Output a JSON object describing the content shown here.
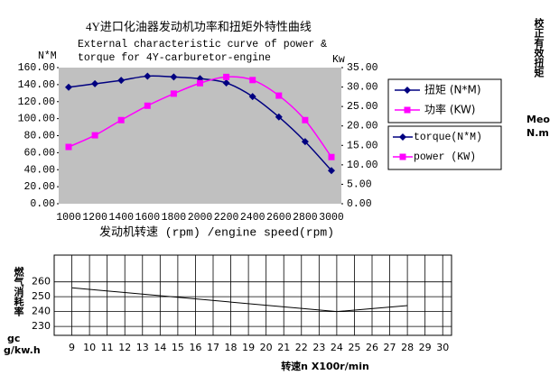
{
  "chart_data": [
    {
      "type": "line",
      "title": "4Y进口化油器发动机功率和扭矩外特性曲线",
      "subtitle": [
        "External characteristic curve of power &",
        "torque for 4Y-carburetor-engine"
      ],
      "ylabel": "N*M",
      "y2label": "Kw",
      "xlabel": "发动机转速 (rpm) /engine speed(rpm)",
      "categories": [
        "1000",
        "1200",
        "1400",
        "1600",
        "1800",
        "2000",
        "2200",
        "2400",
        "2600",
        "2800",
        "3000"
      ],
      "series": [
        {
          "name": "扭矩 (N*M)",
          "color": "#000080",
          "marker": "diamond",
          "values": [
            137,
            141,
            145,
            150,
            149,
            147,
            142,
            126,
            102,
            73,
            39
          ]
        },
        {
          "name": "功率 (KW)",
          "color": "#ff00ff",
          "marker": "square",
          "axis": "y2",
          "values": [
            14.6,
            17.6,
            21.5,
            25.2,
            28.3,
            31.0,
            32.6,
            31.8,
            27.8,
            21.5,
            12.0
          ]
        }
      ],
      "legend_en": [
        "torque(N*M)",
        "power (KW)"
      ],
      "ylim": [
        0,
        160
      ],
      "yticks": [
        {
          "value": 0,
          "label": "0.00"
        },
        {
          "value": 20,
          "label": "20.00"
        },
        {
          "value": 40,
          "label": "40.00"
        },
        {
          "value": 60,
          "label": "60.00"
        },
        {
          "value": 80,
          "label": "80.00"
        },
        {
          "value": 100,
          "label": "100.00"
        },
        {
          "value": 120,
          "label": "120.00"
        },
        {
          "value": 140,
          "label": "140.00"
        },
        {
          "value": 160,
          "label": "160.00"
        }
      ],
      "y2lim": [
        0,
        35
      ],
      "y2ticks": [
        {
          "value": 0,
          "label": "0.00"
        },
        {
          "value": 5,
          "label": "5.00"
        },
        {
          "value": 10,
          "label": "10.00"
        },
        {
          "value": 15,
          "label": "15.00"
        },
        {
          "value": 20,
          "label": "20.00"
        },
        {
          "value": 25,
          "label": "25.00"
        },
        {
          "value": 30,
          "label": "30.00"
        },
        {
          "value": 35,
          "label": "35.00"
        }
      ],
      "side_label": "校正有效扭矩",
      "side_unit": [
        "Meo",
        "N.m"
      ]
    },
    {
      "type": "line",
      "ylabel": "燃气消耗率",
      "yunit": [
        "gc",
        "g/kw.h"
      ],
      "xlabel": "转速n X100r/min",
      "x": [
        9,
        24,
        28
      ],
      "series": [
        {
          "color": "#000000",
          "values": [
            256,
            240,
            244
          ]
        }
      ],
      "xlim": [
        8,
        30.5
      ],
      "xticks": [
        9,
        10,
        11,
        12,
        13,
        14,
        15,
        16,
        17,
        18,
        19,
        20,
        21,
        22,
        23,
        24,
        25,
        26,
        27,
        28,
        29,
        30
      ],
      "ylim": [
        224,
        278
      ],
      "yticks": [
        230,
        240,
        250,
        260
      ],
      "grid": true
    }
  ]
}
